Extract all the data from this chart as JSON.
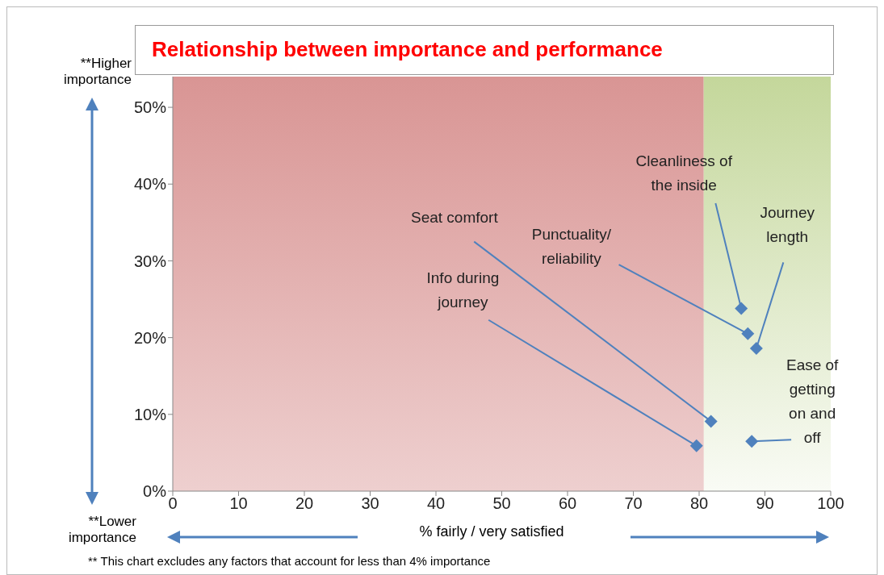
{
  "chart_data": {
    "type": "scatter",
    "title": "Relationship between importance and performance",
    "xlabel": "% fairly / very satisfied",
    "x": [
      79.6,
      81.8,
      86.4,
      87.4,
      88.7,
      88.0
    ],
    "series": [
      {
        "color": "#4f81bd",
        "values": [
          5.9,
          9.1,
          23.8,
          20.5,
          18.6,
          6.5
        ]
      }
    ],
    "marker": "diamond",
    "grid": false,
    "legend": false,
    "xlim": [
      0,
      100
    ],
    "xticks": [
      0,
      10,
      20,
      30,
      40,
      50,
      60,
      70,
      80,
      90,
      100
    ],
    "ylim": [
      0,
      54
    ],
    "yticks": [
      {
        "value": 0,
        "label": "0%"
      },
      {
        "value": 10,
        "label": "10%"
      },
      {
        "value": 20,
        "label": "20%"
      },
      {
        "value": 30,
        "label": "30%"
      },
      {
        "value": 40,
        "label": "40%"
      },
      {
        "value": 50,
        "label": "50%"
      }
    ],
    "bands": [
      {
        "axis": "x",
        "from": 0,
        "to": 80.7,
        "color": "#d99594"
      },
      {
        "axis": "x",
        "from": 80.7,
        "to": 100,
        "color": "#c4d79b"
      }
    ],
    "annotations": [
      {
        "text": "Info during journey",
        "x": 79.6,
        "y": 5.9
      },
      {
        "text": "Seat comfort",
        "x": 81.8,
        "y": 9.1
      },
      {
        "text": "Cleanliness of the inside",
        "x": 86.4,
        "y": 23.8
      },
      {
        "text": "Punctuality/ reliability",
        "x": 87.4,
        "y": 20.5
      },
      {
        "text": "Journey length",
        "x": 88.7,
        "y": 18.6
      },
      {
        "text": "Ease of getting on and off",
        "x": 88.0,
        "y": 6.5
      },
      "**Higher importance",
      "**Lower importance",
      "** This chart excludes any factors that account for less than 4% importance"
    ]
  }
}
